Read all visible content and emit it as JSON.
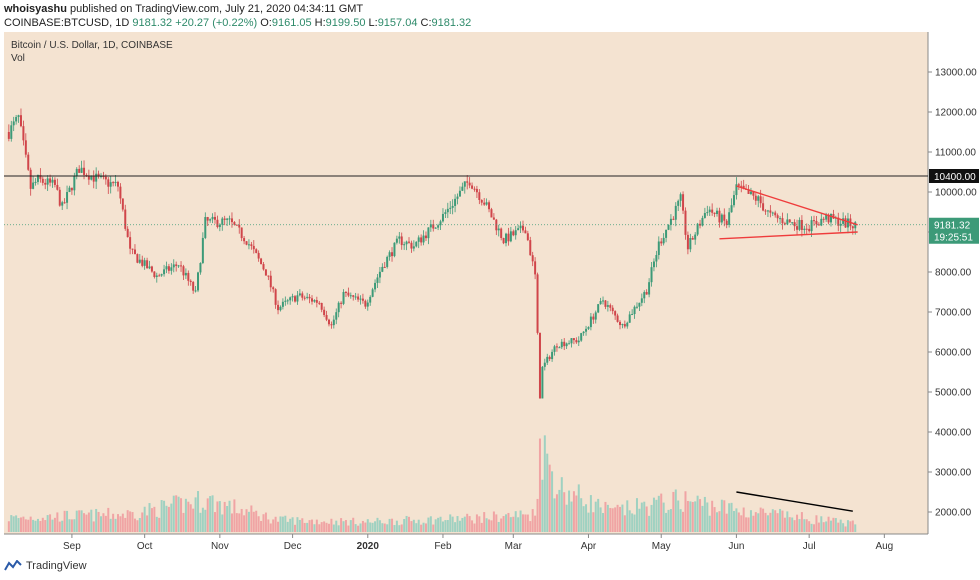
{
  "header": {
    "publisher": "whoisyashu",
    "published_text": "published on TradingView.com, July 21, 2020 04:34:11 GMT",
    "symbol_line": "COINBASE:BTCUSD, 1D",
    "last": "9181.32",
    "change": "+20.27 (+0.22%)",
    "open_label": "O:",
    "open": "9161.05",
    "high_label": "H:",
    "high": "9199.50",
    "low_label": "L:",
    "low": "9157.04",
    "close_label": "C:",
    "close": "9181.32"
  },
  "footer": {
    "brand": "TradingView"
  },
  "colors": {
    "background": "#f4e3d1",
    "up": "#3c9a78",
    "down": "#d0454a",
    "vol_up": "#9fd1c1",
    "vol_down": "#f0a4a4",
    "triangle": "#ef3c3c",
    "price_tag": "#3c9a78"
  },
  "chart_data": {
    "type": "candlestick",
    "title": "Bitcoin / U.S. Dollar, 1D, COINBASE",
    "volume_label": "Vol",
    "x_ticks": [
      {
        "label": "Sep",
        "date": "2019-09-01"
      },
      {
        "label": "Oct",
        "date": "2019-10-01"
      },
      {
        "label": "Nov",
        "date": "2019-11-01"
      },
      {
        "label": "Dec",
        "date": "2019-12-01"
      },
      {
        "label": "2020",
        "date": "2020-01-01"
      },
      {
        "label": "Feb",
        "date": "2020-02-01"
      },
      {
        "label": "Mar",
        "date": "2020-03-01"
      },
      {
        "label": "Apr",
        "date": "2020-04-01"
      },
      {
        "label": "May",
        "date": "2020-05-01"
      },
      {
        "label": "Jun",
        "date": "2020-06-01"
      },
      {
        "label": "Jul",
        "date": "2020-07-01"
      },
      {
        "label": "Aug",
        "date": "2020-08-01"
      }
    ],
    "xlim": [
      "2019-08-04",
      "2020-08-19"
    ],
    "y_ticks": [
      {
        "value": 2000,
        "label": "2000.00"
      },
      {
        "value": 3000,
        "label": "3000.00"
      },
      {
        "value": 4000,
        "label": "4000.00"
      },
      {
        "value": 5000,
        "label": "5000.00"
      },
      {
        "value": 6000,
        "label": "6000.00"
      },
      {
        "value": 7000,
        "label": "7000.00"
      },
      {
        "value": 8000,
        "label": "8000.00"
      },
      {
        "value": 9000,
        "label": "9000.00"
      },
      {
        "value": 10000,
        "label": "10000.00"
      },
      {
        "value": 11000,
        "label": "11000.00"
      },
      {
        "value": 12000,
        "label": "12000.00"
      },
      {
        "value": 13000,
        "label": "13000.00"
      }
    ],
    "ylim": [
      1450,
      14000
    ],
    "horizontal_level": {
      "value": 10400,
      "label": "10400.00"
    },
    "last_price": {
      "value": 9181.32,
      "label": "9181.32",
      "countdown": "19:25:51"
    },
    "price_path": [
      [
        "2019-08-06",
        11500
      ],
      [
        "2019-08-10",
        11850
      ],
      [
        "2019-08-15",
        10100
      ],
      [
        "2019-08-18",
        10300
      ],
      [
        "2019-08-25",
        10150
      ],
      [
        "2019-08-28",
        9600
      ],
      [
        "2019-09-04",
        10600
      ],
      [
        "2019-09-12",
        10300
      ],
      [
        "2019-09-20",
        10150
      ],
      [
        "2019-09-25",
        8500
      ],
      [
        "2019-10-06",
        7900
      ],
      [
        "2019-10-15",
        8200
      ],
      [
        "2019-10-22",
        7450
      ],
      [
        "2019-10-26",
        9250
      ],
      [
        "2019-11-05",
        9250
      ],
      [
        "2019-11-12",
        8800
      ],
      [
        "2019-11-20",
        8000
      ],
      [
        "2019-11-25",
        7100
      ],
      [
        "2019-12-03",
        7400
      ],
      [
        "2019-12-12",
        7250
      ],
      [
        "2019-12-17",
        6650
      ],
      [
        "2019-12-22",
        7450
      ],
      [
        "2019-12-31",
        7200
      ],
      [
        "2020-01-07",
        8150
      ],
      [
        "2020-01-14",
        8800
      ],
      [
        "2020-01-20",
        8650
      ],
      [
        "2020-02-01",
        9400
      ],
      [
        "2020-02-12",
        10300
      ],
      [
        "2020-02-18",
        9750
      ],
      [
        "2020-02-26",
        8800
      ],
      [
        "2020-03-06",
        9100
      ],
      [
        "2020-03-10",
        7900
      ],
      [
        "2020-03-12",
        4900
      ],
      [
        "2020-03-13",
        5600
      ],
      [
        "2020-03-19",
        6200
      ],
      [
        "2020-03-28",
        6300
      ],
      [
        "2020-04-07",
        7300
      ],
      [
        "2020-04-15",
        6650
      ],
      [
        "2020-04-25",
        7550
      ],
      [
        "2020-04-30",
        8700
      ],
      [
        "2020-05-09",
        9800
      ],
      [
        "2020-05-12",
        8600
      ],
      [
        "2020-05-20",
        9600
      ],
      [
        "2020-05-28",
        9200
      ],
      [
        "2020-06-01",
        10100
      ],
      [
        "2020-06-10",
        9800
      ],
      [
        "2020-06-15",
        9400
      ],
      [
        "2020-06-25",
        9200
      ],
      [
        "2020-07-01",
        9150
      ],
      [
        "2020-07-08",
        9350
      ],
      [
        "2020-07-14",
        9250
      ],
      [
        "2020-07-20",
        9160
      ]
    ],
    "volume_path": [
      [
        "2019-08-06",
        1850
      ],
      [
        "2019-09-25",
        1950
      ],
      [
        "2019-10-26",
        2300
      ],
      [
        "2019-11-25",
        1800
      ],
      [
        "2019-12-31",
        1750
      ],
      [
        "2020-02-15",
        1850
      ],
      [
        "2020-03-10",
        1950
      ],
      [
        "2020-03-12",
        3700
      ],
      [
        "2020-03-20",
        2600
      ],
      [
        "2020-04-10",
        2000
      ],
      [
        "2020-05-10",
        2300
      ],
      [
        "2020-06-01",
        2050
      ],
      [
        "2020-07-20",
        1700
      ]
    ],
    "annotations": [
      {
        "type": "trendline",
        "color": "#ef3c3c",
        "from": [
          "2020-06-01",
          10150
        ],
        "to": [
          "2020-07-21",
          9180
        ]
      },
      {
        "type": "trendline",
        "color": "#ef3c3c",
        "from": [
          "2020-05-25",
          8830
        ],
        "to": [
          "2020-07-21",
          9000
        ]
      },
      {
        "type": "trendline",
        "color": "#000000",
        "from": [
          "2020-06-01",
          2500
        ],
        "to": [
          "2020-07-19",
          2020
        ]
      }
    ]
  }
}
